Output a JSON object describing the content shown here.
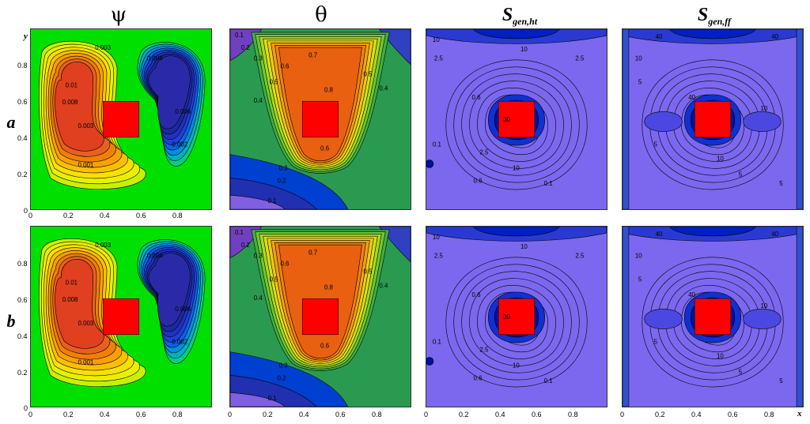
{
  "column_titles": {
    "psi": "ψ",
    "theta": "θ",
    "sgen_ht_main": "S",
    "sgen_ht_sub": "gen,ht",
    "sgen_ff_main": "S",
    "sgen_ff_sub": "gen,ff"
  },
  "row_labels": {
    "a": "a",
    "b": "b"
  },
  "axis": {
    "x_name": "x",
    "y_name": "y",
    "x_ticks": [
      "0",
      "0.2",
      "0.4",
      "0.6",
      "0.8"
    ],
    "y_ticks": [
      "0",
      "0.2",
      "0.4",
      "0.6",
      "0.8"
    ]
  },
  "colors": {
    "block": "#ff0000",
    "psi_background": "#00e000",
    "theta_background": "#20a040",
    "sgen_background": "#7b68ee",
    "contour_line": "#000000"
  },
  "contour_labels": {
    "psi": [
      "0.003",
      "0.01",
      "0.008",
      "0.003",
      "0.002",
      "0.004",
      "0.006",
      "0.001"
    ],
    "theta": [
      "0.1",
      "0.2",
      "0.3",
      "0.4",
      "0.5",
      "0.6",
      "0.7",
      "0.8",
      "0.6",
      "0.5",
      "0.4",
      "0.2",
      "0.1",
      "0.3"
    ],
    "sgen_ht": [
      "10",
      "2.5",
      "0.6",
      "10",
      "2.5",
      "0.1",
      "10",
      "2.5",
      "0.6",
      "0.1",
      "30"
    ],
    "sgen_ff": [
      "40",
      "10",
      "5",
      "40",
      "5",
      "10",
      "40",
      "5",
      "5",
      "10"
    ]
  }
}
